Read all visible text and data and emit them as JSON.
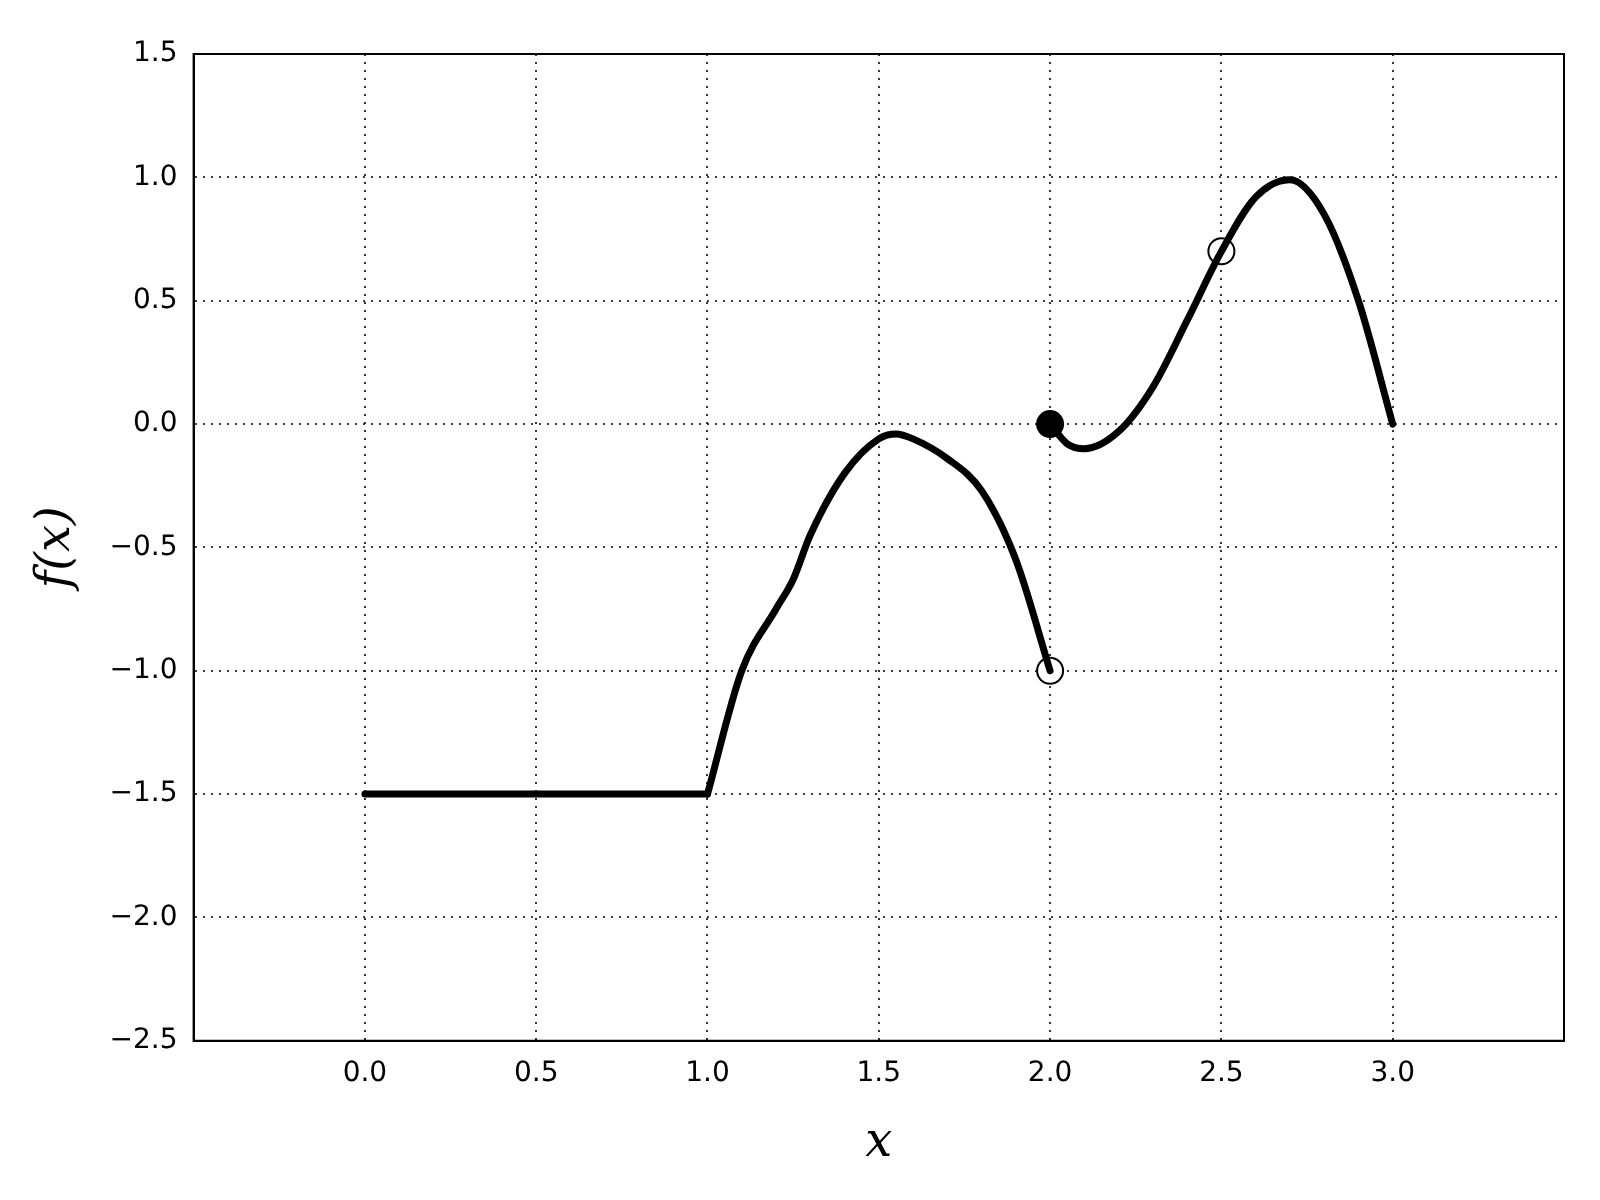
{
  "chart_data": {
    "type": "line",
    "xlabel": "x",
    "ylabel": "f(x)",
    "xlim": [
      -0.5,
      3.5
    ],
    "ylim": [
      -2.5,
      1.5
    ],
    "xticks": [
      {
        "value": 0,
        "label": "0.0"
      },
      {
        "value": 0.5,
        "label": "0.5"
      },
      {
        "value": 1,
        "label": "1.0"
      },
      {
        "value": 1.5,
        "label": "1.5"
      },
      {
        "value": 2,
        "label": "2.0"
      },
      {
        "value": 2.5,
        "label": "2.5"
      },
      {
        "value": 3,
        "label": "3.0"
      }
    ],
    "yticks": [
      {
        "value": -2.5,
        "label": "−2.5"
      },
      {
        "value": -2,
        "label": "−2.0"
      },
      {
        "value": -1.5,
        "label": "−1.5"
      },
      {
        "value": -1,
        "label": "−1.0"
      },
      {
        "value": -0.5,
        "label": "−0.5"
      },
      {
        "value": 0,
        "label": "0.0"
      },
      {
        "value": 0.5,
        "label": "0.5"
      },
      {
        "value": 1,
        "label": "1.0"
      },
      {
        "value": 1.5,
        "label": "1.5"
      }
    ],
    "grid": true,
    "legend": false,
    "marker": "none",
    "line_style": "solid",
    "series": [
      {
        "color": "#000000",
        "x": [
          0,
          1
        ],
        "values": [
          -1.5,
          -1.5
        ]
      },
      {
        "color": "#000000",
        "x": [
          1,
          1.1,
          1.2,
          1.25,
          1.3,
          1.4,
          1.5,
          1.55,
          1.6,
          1.7,
          1.8,
          1.9,
          2
        ],
        "values": [
          -1.5,
          -1.0,
          -0.75,
          -0.63,
          -0.45,
          -0.2,
          -0.06,
          -0.04,
          -0.06,
          -0.14,
          -0.27,
          -0.55,
          -1.0
        ]
      },
      {
        "color": "#000000",
        "x": [
          2,
          2.05,
          2.1,
          2.2,
          2.3,
          2.4,
          2.5,
          2.6,
          2.7,
          2.8,
          2.9,
          3
        ],
        "values": [
          0,
          -0.08,
          -0.1,
          -0.03,
          0.15,
          0.42,
          0.7,
          0.92,
          0.99,
          0.85,
          0.5,
          0
        ]
      },
      {
        "type": "scatter",
        "color": "#000000",
        "marker": "circle",
        "x": [
          2
        ],
        "values": [
          0
        ]
      },
      {
        "type": "scatter",
        "color": "#ffffff",
        "marker": "circle",
        "x": [
          2,
          2.5
        ],
        "values": [
          -1,
          0.7
        ]
      }
    ]
  }
}
